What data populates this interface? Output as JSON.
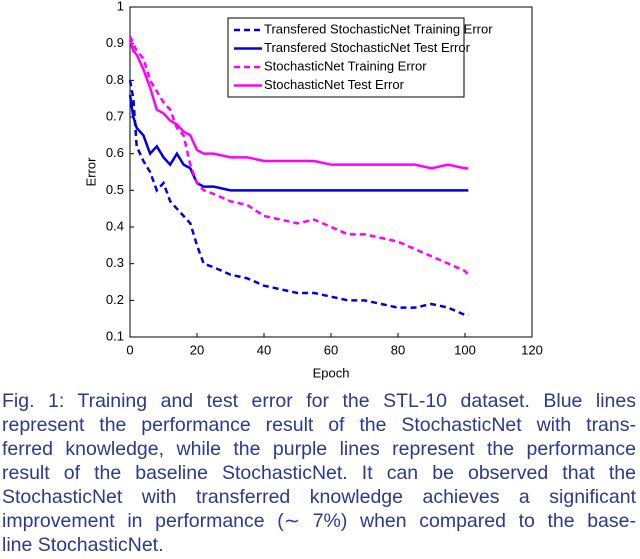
{
  "chart_data": {
    "type": "line",
    "x_label": "Epoch",
    "y_label": "Error",
    "x": [
      0,
      1,
      2,
      4,
      6,
      8,
      10,
      12,
      14,
      16,
      18,
      20,
      22,
      25,
      30,
      35,
      40,
      45,
      50,
      55,
      60,
      65,
      70,
      75,
      80,
      85,
      90,
      95,
      100,
      101
    ],
    "series": [
      {
        "name": "Transfered StochasticNet Training Error",
        "color": "#0000e6",
        "style": "dashed",
        "values": [
          0.8,
          0.75,
          0.62,
          0.58,
          0.55,
          0.5,
          0.52,
          0.47,
          0.45,
          0.43,
          0.41,
          0.35,
          0.3,
          0.29,
          0.27,
          0.26,
          0.24,
          0.23,
          0.22,
          0.22,
          0.21,
          0.2,
          0.2,
          0.19,
          0.18,
          0.18,
          0.19,
          0.18,
          0.16,
          0.16
        ]
      },
      {
        "name": "Transfered StochasticNet Test Error",
        "color": "#0000e6",
        "style": "solid",
        "values": [
          0.76,
          0.7,
          0.67,
          0.65,
          0.6,
          0.62,
          0.59,
          0.57,
          0.6,
          0.57,
          0.56,
          0.52,
          0.51,
          0.51,
          0.5,
          0.5,
          0.5,
          0.5,
          0.5,
          0.5,
          0.5,
          0.5,
          0.5,
          0.5,
          0.5,
          0.5,
          0.5,
          0.5,
          0.5,
          0.5
        ]
      },
      {
        "name": "StochasticNet Training Error",
        "color": "#ff00ff",
        "style": "dashed",
        "values": [
          0.92,
          0.9,
          0.88,
          0.86,
          0.8,
          0.77,
          0.74,
          0.72,
          0.67,
          0.65,
          0.57,
          0.52,
          0.5,
          0.49,
          0.47,
          0.46,
          0.43,
          0.42,
          0.41,
          0.42,
          0.4,
          0.38,
          0.38,
          0.37,
          0.36,
          0.34,
          0.32,
          0.3,
          0.28,
          0.27
        ]
      },
      {
        "name": "StochasticNet Test Error",
        "color": "#ff00ff",
        "style": "solid",
        "values": [
          0.91,
          0.88,
          0.87,
          0.83,
          0.78,
          0.72,
          0.71,
          0.69,
          0.68,
          0.66,
          0.65,
          0.61,
          0.6,
          0.6,
          0.59,
          0.59,
          0.58,
          0.58,
          0.58,
          0.58,
          0.57,
          0.57,
          0.57,
          0.57,
          0.57,
          0.57,
          0.56,
          0.57,
          0.56,
          0.56
        ]
      }
    ],
    "xlim": [
      0,
      120
    ],
    "xticks": [
      0,
      20,
      40,
      60,
      80,
      100,
      120
    ],
    "ylim": [
      0.1,
      1
    ],
    "yticks": [
      0.1,
      0.2,
      0.3,
      0.4,
      0.5,
      0.6,
      0.7,
      0.8,
      0.9,
      1
    ],
    "grid": false,
    "legend": "top-right"
  },
  "caption": [
    "Fig. 1: Training and test error for the STL-10 dataset. Blue lines",
    "represent the performance result of the StochasticNet with trans-",
    "ferred knowledge, while the purple lines represent the performance",
    "result of the baseline StochasticNet. It can be observed that the",
    "StochasticNet with transferred knowledge achieves a significant",
    "improvement in performance (∼ 7%) when compared to the base-",
    "line StochasticNet."
  ]
}
